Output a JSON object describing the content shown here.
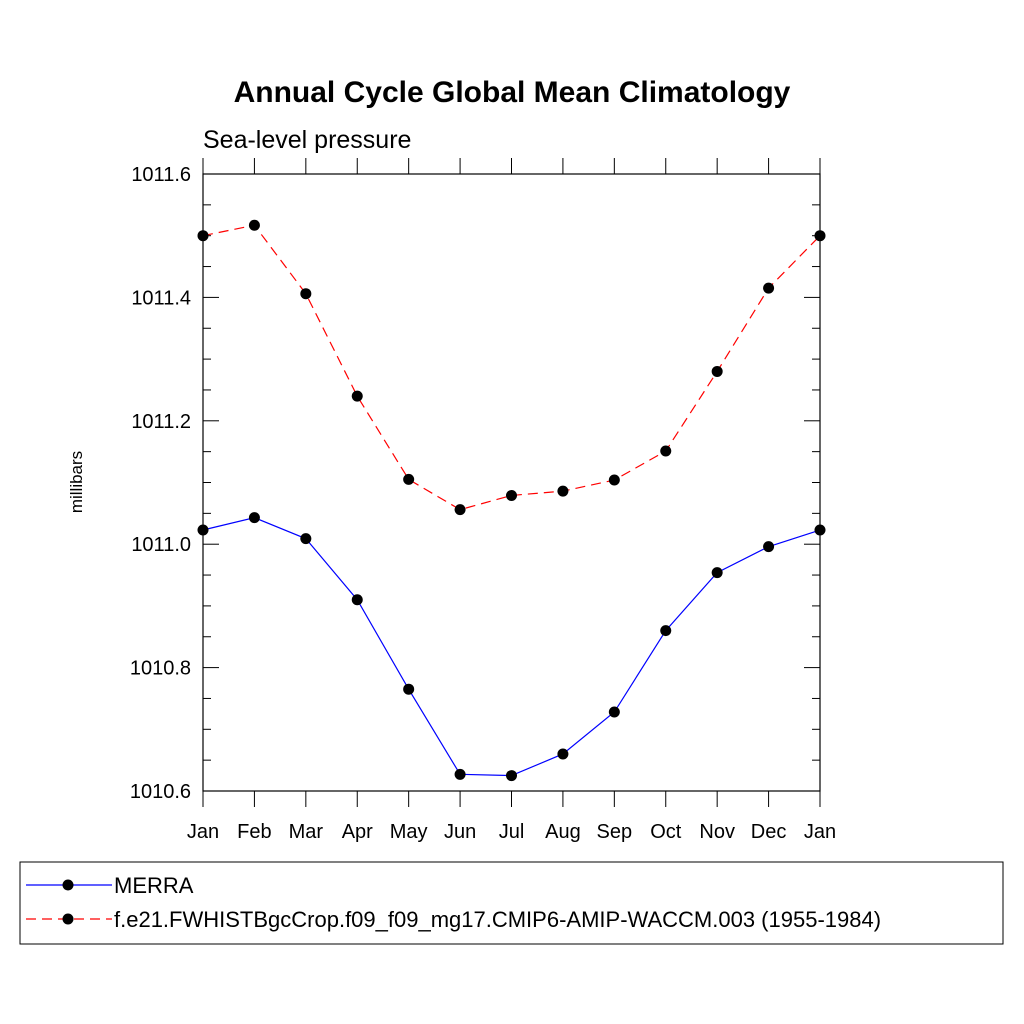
{
  "chart_data": {
    "type": "line",
    "title": "Annual Cycle Global Mean Climatology",
    "subtitle": "Sea-level pressure",
    "xlabel": "",
    "ylabel": "millibars",
    "categories": [
      "Jan",
      "Feb",
      "Mar",
      "Apr",
      "May",
      "Jun",
      "Jul",
      "Aug",
      "Sep",
      "Oct",
      "Nov",
      "Dec",
      "Jan"
    ],
    "ylim": [
      1010.6,
      1011.6
    ],
    "yticks": [
      1010.6,
      1010.8,
      1011.0,
      1011.2,
      1011.4,
      1011.6
    ],
    "ytick_labels": [
      "1010.6",
      "1010.8",
      "1011.0",
      "1011.2",
      "1011.4",
      "1011.6"
    ],
    "series": [
      {
        "name": "MERRA",
        "color": "#0000ff",
        "style": "solid",
        "marker": "circle",
        "values": [
          1011.023,
          1011.043,
          1011.009,
          1010.91,
          1010.765,
          1010.627,
          1010.625,
          1010.66,
          1010.728,
          1010.86,
          1010.954,
          1010.996,
          1011.023
        ]
      },
      {
        "name": "f.e21.FWHISTBgcCrop.f09_f09_mg17.CMIP6-AMIP-WACCM.003 (1955-1984)",
        "color": "#ff0000",
        "style": "dashed",
        "marker": "circle",
        "values": [
          1011.5,
          1011.517,
          1011.406,
          1011.24,
          1011.105,
          1011.056,
          1011.079,
          1011.086,
          1011.104,
          1011.151,
          1011.28,
          1011.415,
          1011.5
        ]
      }
    ],
    "legend_position": "bottom"
  }
}
